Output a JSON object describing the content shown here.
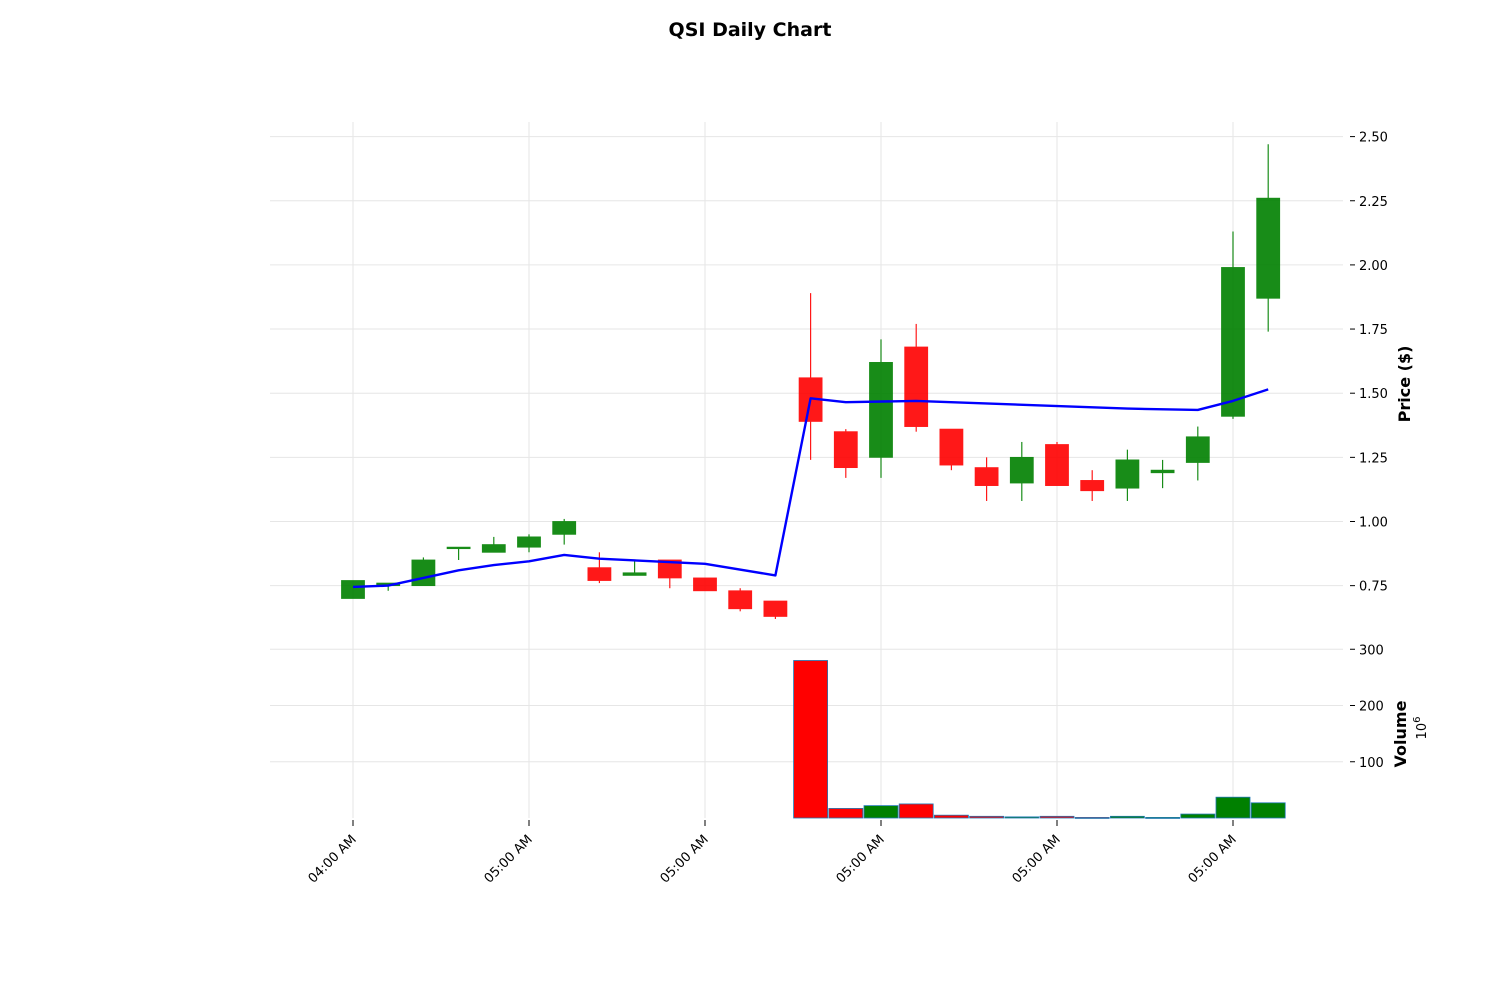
{
  "chart_data": {
    "type": "candlestick",
    "title": "QSI Daily Chart",
    "price_panel": {
      "ylabel": "Price ($)",
      "ylim": [
        0.6,
        2.56
      ],
      "yticks": [
        0.75,
        1.0,
        1.25,
        1.5,
        1.75,
        2.0,
        2.25,
        2.5
      ],
      "ytick_labels": [
        "0.75",
        "1.00",
        "1.25",
        "1.50",
        "1.75",
        "2.00",
        "2.25",
        "2.50"
      ]
    },
    "volume_panel": {
      "ylabel": "Volume",
      "exponent_label": "10",
      "exponent_power": "6",
      "yticks": [
        100,
        200,
        300
      ],
      "ytick_labels": [
        "100",
        "200",
        "300"
      ],
      "ylim": [
        0,
        310
      ]
    },
    "xtick_positions": [
      0,
      5,
      10,
      15,
      20,
      25
    ],
    "xtick_labels": [
      "04:00 AM",
      "05:00 AM",
      "05:00 AM",
      "05:00 AM",
      "05:00 AM",
      "05:00 AM"
    ],
    "grid": true,
    "colors": {
      "up": "#008000",
      "down": "#ff0000",
      "ma_line": "#0000ff"
    },
    "candles": [
      {
        "o": 0.7,
        "h": 0.77,
        "l": 0.7,
        "c": 0.77
      },
      {
        "o": 0.75,
        "h": 0.76,
        "l": 0.73,
        "c": 0.76
      },
      {
        "o": 0.75,
        "h": 0.86,
        "l": 0.75,
        "c": 0.85
      },
      {
        "o": 0.9,
        "h": 0.9,
        "l": 0.85,
        "c": 0.9
      },
      {
        "o": 0.88,
        "h": 0.94,
        "l": 0.88,
        "c": 0.91
      },
      {
        "o": 0.9,
        "h": 0.95,
        "l": 0.88,
        "c": 0.94
      },
      {
        "o": 0.95,
        "h": 1.01,
        "l": 0.91,
        "c": 1.0
      },
      {
        "o": 0.82,
        "h": 0.88,
        "l": 0.76,
        "c": 0.77
      },
      {
        "o": 0.79,
        "h": 0.85,
        "l": 0.79,
        "c": 0.8
      },
      {
        "o": 0.85,
        "h": 0.85,
        "l": 0.74,
        "c": 0.78
      },
      {
        "o": 0.78,
        "h": 0.78,
        "l": 0.73,
        "c": 0.73
      },
      {
        "o": 0.73,
        "h": 0.74,
        "l": 0.65,
        "c": 0.66
      },
      {
        "o": 0.69,
        "h": 0.69,
        "l": 0.62,
        "c": 0.63
      },
      {
        "o": 1.56,
        "h": 1.89,
        "l": 1.24,
        "c": 1.39
      },
      {
        "o": 1.35,
        "h": 1.36,
        "l": 1.17,
        "c": 1.21
      },
      {
        "o": 1.25,
        "h": 1.71,
        "l": 1.17,
        "c": 1.62
      },
      {
        "o": 1.68,
        "h": 1.77,
        "l": 1.35,
        "c": 1.37
      },
      {
        "o": 1.36,
        "h": 1.36,
        "l": 1.2,
        "c": 1.22
      },
      {
        "o": 1.21,
        "h": 1.25,
        "l": 1.08,
        "c": 1.14
      },
      {
        "o": 1.15,
        "h": 1.31,
        "l": 1.08,
        "c": 1.25
      },
      {
        "o": 1.3,
        "h": 1.31,
        "l": 1.14,
        "c": 1.14
      },
      {
        "o": 1.16,
        "h": 1.2,
        "l": 1.08,
        "c": 1.12
      },
      {
        "o": 1.13,
        "h": 1.28,
        "l": 1.08,
        "c": 1.24
      },
      {
        "o": 1.19,
        "h": 1.24,
        "l": 1.13,
        "c": 1.2
      },
      {
        "o": 1.23,
        "h": 1.37,
        "l": 1.16,
        "c": 1.33
      },
      {
        "o": 1.41,
        "h": 2.13,
        "l": 1.4,
        "c": 1.99
      },
      {
        "o": 1.87,
        "h": 2.47,
        "l": 1.74,
        "c": 2.26
      }
    ],
    "volume": [
      {
        "x": 13,
        "v": 280,
        "dir": "down"
      },
      {
        "x": 14,
        "v": 17,
        "dir": "down"
      },
      {
        "x": 15,
        "v": 22,
        "dir": "up"
      },
      {
        "x": 16,
        "v": 25,
        "dir": "down"
      },
      {
        "x": 17,
        "v": 5,
        "dir": "down"
      },
      {
        "x": 18,
        "v": 3,
        "dir": "down"
      },
      {
        "x": 19,
        "v": 2,
        "dir": "up"
      },
      {
        "x": 20,
        "v": 3,
        "dir": "down"
      },
      {
        "x": 21,
        "v": 1,
        "dir": "down"
      },
      {
        "x": 22,
        "v": 3,
        "dir": "up"
      },
      {
        "x": 23,
        "v": 1,
        "dir": "up"
      },
      {
        "x": 24,
        "v": 7,
        "dir": "up"
      },
      {
        "x": 25,
        "v": 37,
        "dir": "up"
      },
      {
        "x": 26,
        "v": 27,
        "dir": "up"
      }
    ],
    "moving_average": [
      {
        "x": 0,
        "y": 0.745
      },
      {
        "x": 1,
        "y": 0.75
      },
      {
        "x": 3,
        "y": 0.81
      },
      {
        "x": 4,
        "y": 0.83
      },
      {
        "x": 5,
        "y": 0.845
      },
      {
        "x": 6,
        "y": 0.87
      },
      {
        "x": 7,
        "y": 0.855
      },
      {
        "x": 10,
        "y": 0.835
      },
      {
        "x": 12,
        "y": 0.79
      },
      {
        "x": 13,
        "y": 1.48
      },
      {
        "x": 14,
        "y": 1.465
      },
      {
        "x": 16,
        "y": 1.47
      },
      {
        "x": 22,
        "y": 1.44
      },
      {
        "x": 24,
        "y": 1.435
      },
      {
        "x": 25,
        "y": 1.47
      },
      {
        "x": 26,
        "y": 1.515
      }
    ]
  }
}
